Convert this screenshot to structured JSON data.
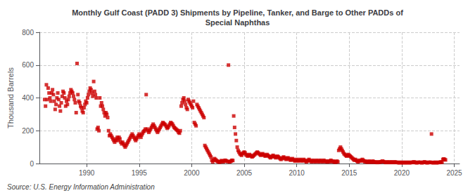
{
  "chart_data": {
    "type": "scatter",
    "title": "Monthly Gulf Coast (PADD 3) Shipments by Pipeline, Tanker, and Barge to Other PADDs of\nSpecial Naphthas",
    "ylabel": "Thousand Barrels",
    "annotation": "Source: U.S. Energy Information Administration",
    "color": "#cc0000",
    "marker": "square",
    "grid": true,
    "xlim": [
      1985.5,
      2025.5
    ],
    "ylim": [
      0,
      800
    ],
    "xticks": [
      1990,
      1995,
      2000,
      2005,
      2010,
      2015,
      2020,
      2025
    ],
    "yticks": [
      0,
      200,
      400,
      600,
      800
    ],
    "x": [
      1986.0,
      1986.083,
      1986.167,
      1986.25,
      1986.333,
      1986.417,
      1986.5,
      1986.583,
      1986.667,
      1986.75,
      1986.833,
      1986.917,
      1987.0,
      1987.083,
      1987.167,
      1987.25,
      1987.333,
      1987.417,
      1987.5,
      1987.583,
      1987.667,
      1987.75,
      1987.833,
      1987.917,
      1988.0,
      1988.083,
      1988.167,
      1988.25,
      1988.333,
      1988.417,
      1988.5,
      1988.583,
      1988.667,
      1988.75,
      1988.833,
      1988.917,
      1989.0,
      1989.083,
      1989.167,
      1989.25,
      1989.333,
      1989.417,
      1989.5,
      1989.583,
      1989.667,
      1989.75,
      1989.833,
      1989.917,
      1990.0,
      1990.083,
      1990.167,
      1990.25,
      1990.333,
      1990.417,
      1990.5,
      1990.583,
      1990.667,
      1990.75,
      1990.833,
      1990.917,
      1991.0,
      1991.083,
      1991.167,
      1991.25,
      1991.333,
      1991.417,
      1991.5,
      1991.583,
      1991.667,
      1991.75,
      1991.833,
      1991.917,
      1992.0,
      1992.083,
      1992.167,
      1992.25,
      1992.333,
      1992.417,
      1992.5,
      1992.583,
      1992.667,
      1992.75,
      1992.833,
      1992.917,
      1993.0,
      1993.083,
      1993.167,
      1993.25,
      1993.333,
      1993.417,
      1993.5,
      1993.583,
      1993.667,
      1993.75,
      1993.833,
      1993.917,
      1994.0,
      1994.083,
      1994.167,
      1994.25,
      1994.333,
      1994.417,
      1994.5,
      1994.583,
      1994.667,
      1994.75,
      1994.833,
      1994.917,
      1995.0,
      1995.083,
      1995.167,
      1995.25,
      1995.333,
      1995.417,
      1995.5,
      1995.583,
      1995.667,
      1995.75,
      1995.833,
      1995.917,
      1996.0,
      1996.083,
      1996.167,
      1996.25,
      1996.333,
      1996.417,
      1996.5,
      1996.583,
      1996.667,
      1996.75,
      1996.833,
      1996.917,
      1997.0,
      1997.083,
      1997.167,
      1997.25,
      1997.333,
      1997.417,
      1997.5,
      1997.583,
      1997.667,
      1997.75,
      1997.833,
      1997.917,
      1998.0,
      1998.083,
      1998.167,
      1998.25,
      1998.333,
      1998.417,
      1998.5,
      1998.583,
      1998.667,
      1998.75,
      1998.833,
      1998.917,
      1999.0,
      1999.083,
      1999.167,
      1999.25,
      1999.333,
      1999.417,
      1999.5,
      1999.583,
      1999.667,
      1999.75,
      1999.833,
      1999.917,
      2000.0,
      2000.083,
      2000.167,
      2000.25,
      2000.333,
      2000.417,
      2000.5,
      2000.583,
      2000.667,
      2000.75,
      2000.833,
      2000.917,
      2001.0,
      2001.083,
      2001.167,
      2001.25,
      2001.333,
      2001.417,
      2001.5,
      2001.583,
      2001.667,
      2001.75,
      2001.833,
      2001.917,
      2002.0,
      2002.083,
      2002.167,
      2002.25,
      2002.333,
      2002.417,
      2002.5,
      2002.583,
      2002.667,
      2002.75,
      2002.833,
      2002.917,
      2003.0,
      2003.083,
      2003.167,
      2003.25,
      2003.333,
      2003.417,
      2003.5,
      2003.583,
      2003.667,
      2003.75,
      2003.833,
      2003.917,
      2004.0,
      2004.083,
      2004.167,
      2004.25,
      2004.333,
      2004.417,
      2004.5,
      2004.583,
      2004.667,
      2004.75,
      2004.833,
      2004.917,
      2005.0,
      2005.083,
      2005.167,
      2005.25,
      2005.333,
      2005.417,
      2005.5,
      2005.583,
      2005.667,
      2005.75,
      2005.833,
      2005.917,
      2006.0,
      2006.083,
      2006.167,
      2006.25,
      2006.333,
      2006.417,
      2006.5,
      2006.583,
      2006.667,
      2006.75,
      2006.833,
      2006.917,
      2007.0,
      2007.083,
      2007.167,
      2007.25,
      2007.333,
      2007.417,
      2007.5,
      2007.583,
      2007.667,
      2007.75,
      2007.833,
      2007.917,
      2008.0,
      2008.083,
      2008.167,
      2008.25,
      2008.333,
      2008.417,
      2008.5,
      2008.583,
      2008.667,
      2008.75,
      2008.833,
      2008.917,
      2009.0,
      2009.083,
      2009.167,
      2009.25,
      2009.333,
      2009.417,
      2009.5,
      2009.583,
      2009.667,
      2009.75,
      2009.833,
      2009.917,
      2010.0,
      2010.083,
      2010.167,
      2010.25,
      2010.333,
      2010.417,
      2010.5,
      2010.583,
      2010.667,
      2010.75,
      2010.833,
      2010.917,
      2011.0,
      2011.083,
      2011.167,
      2011.25,
      2011.333,
      2011.417,
      2011.5,
      2011.583,
      2011.667,
      2011.75,
      2011.833,
      2011.917,
      2012.0,
      2012.083,
      2012.167,
      2012.25,
      2012.333,
      2012.417,
      2012.5,
      2012.583,
      2012.667,
      2012.75,
      2012.833,
      2012.917,
      2013.0,
      2013.083,
      2013.167,
      2013.25,
      2013.333,
      2013.417,
      2013.5,
      2013.583,
      2013.667,
      2013.75,
      2013.833,
      2013.917,
      2014.0,
      2014.083,
      2014.167,
      2014.25,
      2014.333,
      2014.417,
      2014.5,
      2014.583,
      2014.667,
      2014.75,
      2014.833,
      2014.917,
      2015.0,
      2015.083,
      2015.167,
      2015.25,
      2015.333,
      2015.417,
      2015.5,
      2015.583,
      2015.667,
      2015.75,
      2015.833,
      2015.917,
      2016.0,
      2016.083,
      2016.167,
      2016.25,
      2016.333,
      2016.417,
      2016.5,
      2016.583,
      2016.667,
      2016.75,
      2016.833,
      2016.917,
      2017.0,
      2017.083,
      2017.167,
      2017.25,
      2017.333,
      2017.417,
      2017.5,
      2017.583,
      2017.667,
      2017.75,
      2017.833,
      2017.917,
      2018.0,
      2018.083,
      2018.167,
      2018.25,
      2018.333,
      2018.417,
      2018.5,
      2018.583,
      2018.667,
      2018.75,
      2018.833,
      2018.917,
      2019.0,
      2019.083,
      2019.167,
      2019.25,
      2019.333,
      2019.417,
      2019.5,
      2019.583,
      2019.667,
      2019.75,
      2019.833,
      2019.917,
      2020.0,
      2020.083,
      2020.167,
      2020.25,
      2020.333,
      2020.417,
      2020.5,
      2020.583,
      2020.667,
      2020.75,
      2020.833,
      2020.917,
      2021.0,
      2021.083,
      2021.167,
      2021.25,
      2021.333,
      2021.417,
      2021.5,
      2021.583,
      2021.667,
      2021.75,
      2021.833,
      2021.917,
      2022.0,
      2022.083,
      2022.167,
      2022.25,
      2022.333,
      2022.417,
      2022.5,
      2022.583,
      2022.667,
      2022.75,
      2022.833,
      2022.917,
      2023.0,
      2023.083,
      2023.167,
      2023.25,
      2023.333,
      2023.417,
      2023.5,
      2023.583,
      2023.667,
      2023.75,
      2023.833,
      2023.917,
      2024.0,
      2024.083,
      2024.167
    ],
    "values": [
      390,
      350,
      480,
      390,
      460,
      430,
      400,
      380,
      430,
      450,
      420,
      380,
      330,
      360,
      400,
      430,
      390,
      350,
      320,
      370,
      410,
      440,
      430,
      400,
      350,
      380,
      360,
      390,
      410,
      430,
      450,
      440,
      430,
      410,
      390,
      370,
      310,
      610,
      420,
      380,
      370,
      350,
      340,
      320,
      310,
      340,
      360,
      380,
      370,
      400,
      420,
      440,
      460,
      450,
      430,
      410,
      500,
      440,
      420,
      400,
      210,
      220,
      200,
      400,
      350,
      370,
      350,
      330,
      310,
      290,
      310,
      300,
      280,
      200,
      170,
      180,
      170,
      160,
      150,
      140,
      130,
      140,
      150,
      160,
      140,
      160,
      150,
      130,
      120,
      130,
      120,
      110,
      100,
      110,
      120,
      130,
      140,
      150,
      160,
      170,
      180,
      170,
      160,
      150,
      140,
      150,
      160,
      170,
      180,
      170,
      160,
      175,
      185,
      195,
      200,
      210,
      420,
      210,
      200,
      190,
      200,
      210,
      220,
      230,
      240,
      230,
      220,
      210,
      200,
      190,
      200,
      210,
      220,
      230,
      240,
      250,
      245,
      240,
      235,
      225,
      215,
      220,
      230,
      240,
      250,
      245,
      240,
      230,
      220,
      215,
      210,
      205,
      200,
      190,
      185,
      200,
      350,
      370,
      390,
      400,
      380,
      360,
      340,
      330,
      390,
      380,
      370,
      360,
      350,
      340,
      380,
      250,
      240,
      230,
      360,
      350,
      340,
      330,
      320,
      310,
      300,
      290,
      280,
      110,
      100,
      90,
      80,
      70,
      60,
      50,
      40,
      20,
      10,
      20,
      30,
      25,
      20,
      15,
      12,
      10,
      8,
      12,
      18,
      15,
      10,
      15,
      20,
      18,
      15,
      12,
      600,
      10,
      12,
      15,
      20,
      18,
      290,
      220,
      180,
      140,
      100,
      80,
      70,
      60,
      55,
      50,
      60,
      65,
      70,
      65,
      55,
      50,
      45,
      50,
      55,
      50,
      45,
      40,
      45,
      50,
      55,
      60,
      65,
      70,
      65,
      60,
      55,
      50,
      55,
      60,
      55,
      50,
      45,
      50,
      55,
      50,
      45,
      40,
      35,
      40,
      45,
      50,
      45,
      40,
      35,
      40,
      45,
      40,
      35,
      30,
      25,
      30,
      35,
      40,
      35,
      30,
      25,
      30,
      35,
      30,
      25,
      20,
      25,
      30,
      25,
      20,
      15,
      20,
      25,
      20,
      15,
      20,
      25,
      20,
      15,
      20,
      25,
      20,
      15,
      10,
      15,
      20,
      25,
      20,
      15,
      10,
      15,
      20,
      15,
      10,
      15,
      20,
      15,
      10,
      15,
      20,
      15,
      10,
      15,
      20,
      15,
      10,
      15,
      10,
      15,
      10,
      15,
      20,
      15,
      10,
      15,
      10,
      8,
      10,
      15,
      10,
      80,
      90,
      100,
      90,
      80,
      70,
      60,
      55,
      50,
      45,
      50,
      55,
      50,
      45,
      40,
      35,
      30,
      25,
      20,
      25,
      20,
      15,
      10,
      15,
      20,
      15,
      20,
      25,
      20,
      15,
      10,
      15,
      10,
      8,
      10,
      15,
      10,
      8,
      10,
      15,
      10,
      8,
      10,
      8,
      6,
      8,
      10,
      8,
      10,
      12,
      15,
      12,
      10,
      8,
      6,
      8,
      10,
      8,
      6,
      8,
      10,
      8,
      6,
      8,
      10,
      8,
      6,
      8,
      6,
      4,
      6,
      8,
      6,
      4,
      6,
      8,
      6,
      4,
      6,
      8,
      6,
      4,
      6,
      8,
      6,
      8,
      10,
      8,
      6,
      4,
      6,
      8,
      6,
      8,
      6,
      4,
      6,
      8,
      10,
      8,
      6,
      4,
      6,
      8,
      6,
      8,
      180,
      6,
      4,
      6,
      8,
      6,
      4,
      6,
      8,
      6,
      8,
      10,
      8,
      25,
      28,
      25,
      22
    ]
  }
}
